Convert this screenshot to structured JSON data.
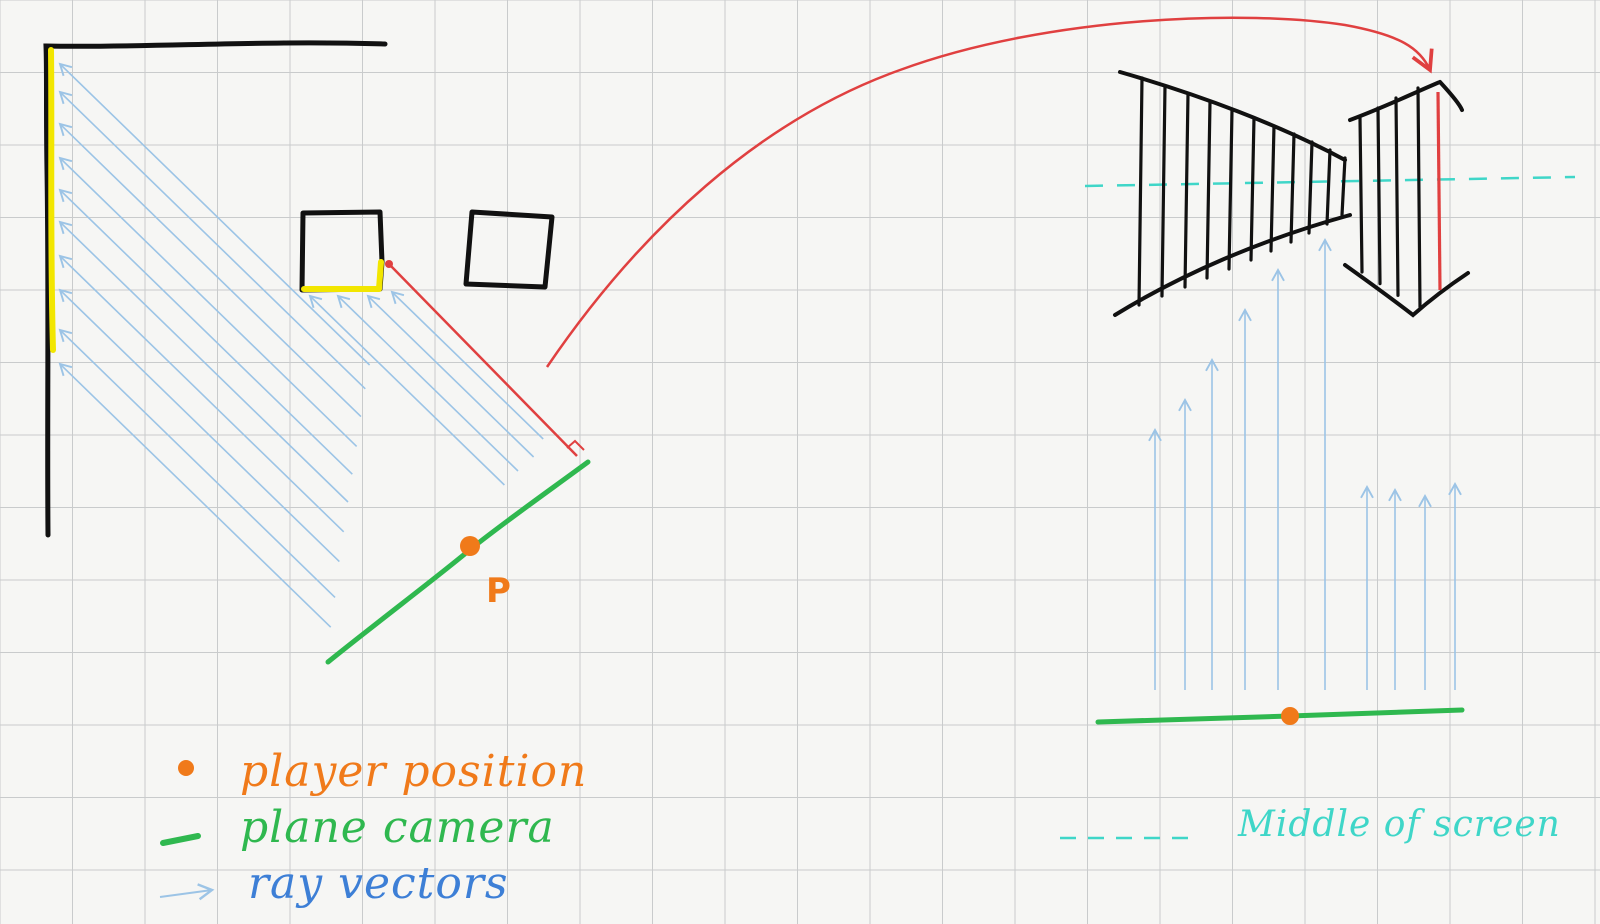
{
  "diagram": {
    "point_label": "P",
    "legend": {
      "player_position": "player position",
      "plane_camera": "plane camera",
      "ray_vectors": "ray vectors",
      "middle_of_screen": "Middle of screen"
    },
    "colors": {
      "background": "#f6f6f4",
      "grid": "#c9cbcc",
      "wall": "#111111",
      "hit_wall": "#f2e600",
      "ray": "#9cc4e6",
      "ray_label": "#3d7fd6",
      "link": "#e04040",
      "camera_plane": "#2fb84f",
      "player": "#f07a1a",
      "middle_line": "#3fd6c8"
    }
  }
}
